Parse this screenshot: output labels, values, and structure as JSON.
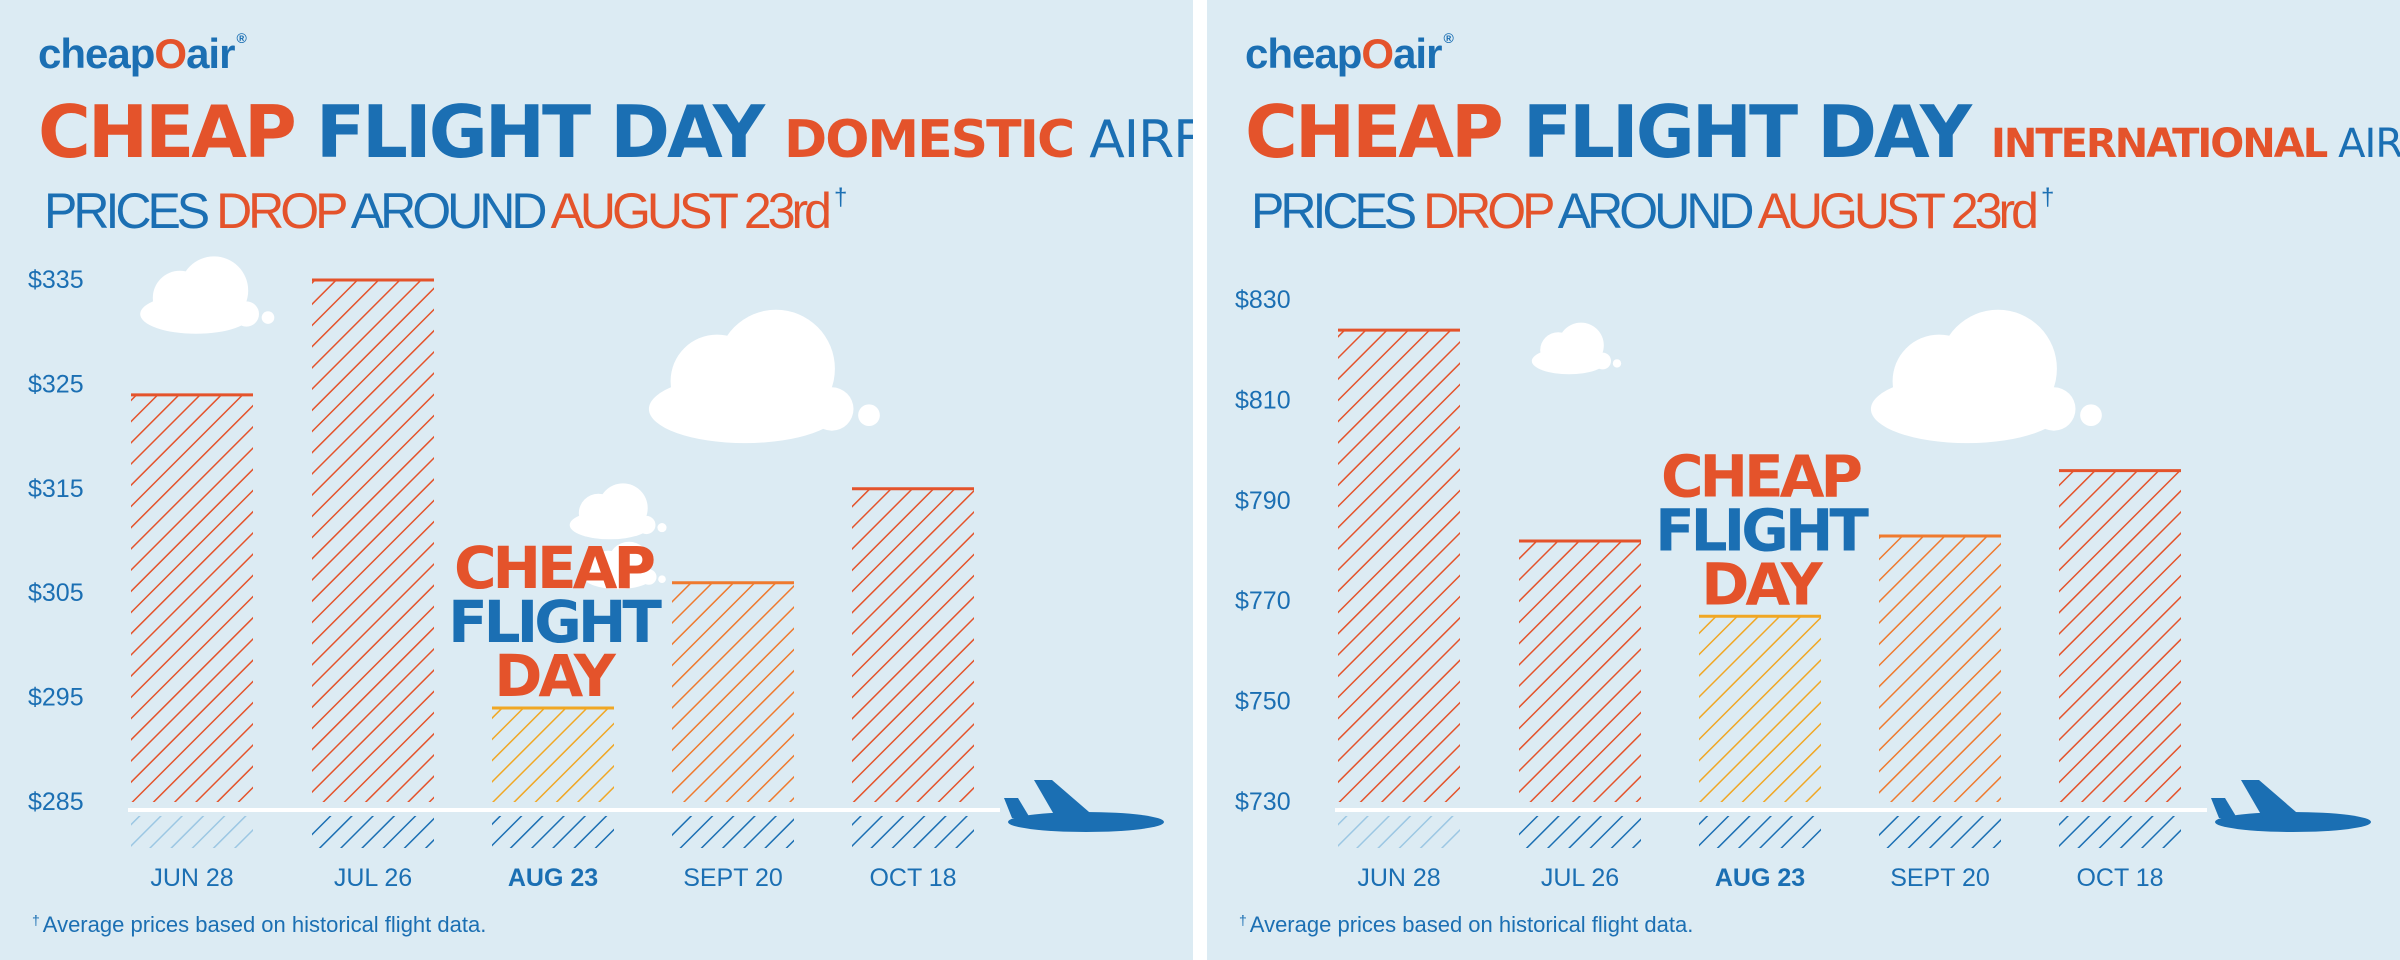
{
  "brand": {
    "logo_left": "cheap",
    "logo_mid": "O",
    "logo_right": "air",
    "logo_reg": "®"
  },
  "colors": {
    "background": "#dcebf3",
    "orange": "#e4532b",
    "blue": "#1b6fb3",
    "yellow": "#f0a724",
    "light_blue": "#9cc7e3"
  },
  "panels": [
    {
      "title": {
        "part1": "CHEAP ",
        "part2": "FLIGHT DAY ",
        "part3": "DOMESTIC ",
        "part4": "AIRFARE"
      },
      "subtitle": {
        "p1": "PRICES ",
        "p2": "DROP ",
        "p3": "AROUND ",
        "p4": "AUGUST 23rd",
        "dagger": "†"
      },
      "footnote": {
        "dagger": "†",
        "text": "Average prices based on historical flight data."
      },
      "badge": [
        "CHEAP",
        "FLIGHT",
        "DAY"
      ]
    },
    {
      "title": {
        "part1": "CHEAP ",
        "part2": "FLIGHT DAY ",
        "part3": "INTERNATIONAL ",
        "part4": "AIRFARE"
      },
      "subtitle": {
        "p1": "PRICES ",
        "p2": "DROP ",
        "p3": "AROUND ",
        "p4": "AUGUST 23rd",
        "dagger": "†"
      },
      "footnote": {
        "dagger": "†",
        "text": "Average prices based on historical flight data."
      },
      "badge": [
        "CHEAP",
        "FLIGHT",
        "DAY"
      ]
    }
  ],
  "chart_data": [
    {
      "type": "bar",
      "categories": [
        "JUN 28",
        "JUL 26",
        "AUG 23",
        "SEPT 20",
        "OCT 18"
      ],
      "values": [
        324,
        335,
        294,
        306,
        315
      ],
      "highlight": "AUG 23",
      "y_ticks": [
        "$335",
        "$325",
        "$315",
        "$305",
        "$295",
        "$285"
      ],
      "y_tick_values": [
        335,
        325,
        315,
        305,
        295,
        285
      ],
      "ylim": [
        285,
        335
      ],
      "bar_colors": [
        "#e4532b",
        "#e4532b",
        "#f0a724",
        "#ef7a2e",
        "#e4532b"
      ],
      "grid": false
    },
    {
      "type": "bar",
      "categories": [
        "JUN 28",
        "JUL 26",
        "AUG 23",
        "SEPT 20",
        "OCT 18"
      ],
      "values": [
        824,
        782,
        767,
        783,
        796
      ],
      "highlight": "AUG 23",
      "y_ticks": [
        "$830",
        "$810",
        "$790",
        "$770",
        "$750",
        "$730"
      ],
      "y_tick_values": [
        830,
        810,
        790,
        770,
        750,
        730
      ],
      "ylim": [
        730,
        830
      ],
      "bar_colors": [
        "#e4532b",
        "#e4532b",
        "#f0a724",
        "#ef7a2e",
        "#e4532b"
      ],
      "grid": false
    }
  ]
}
